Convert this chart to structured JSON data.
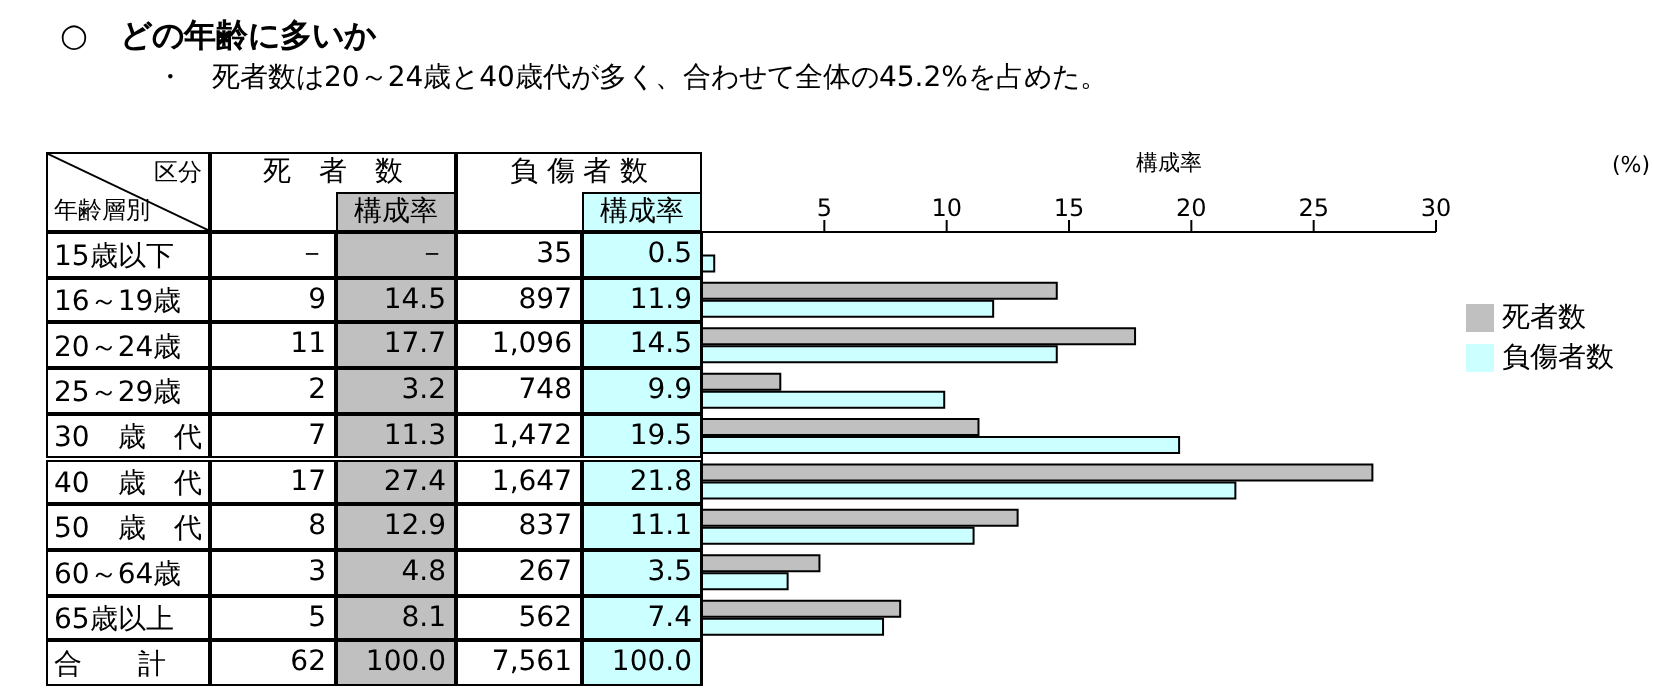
{
  "chart_data": {
    "type": "bar",
    "orientation": "horizontal",
    "title": "○　どの年齢に多いか",
    "subtitle": "・　死者数は20～24歳と40歳代が多く、合わせて全体の45.2%を占めた。",
    "xlabel": "構成率",
    "categories": [
      "15歳以下",
      "16～19歳",
      "20～24歳",
      "25～29歳",
      "30　歳　代",
      "40　歳　代",
      "50　歳　代",
      "60～64歳",
      "65歳以上",
      "合　　計"
    ],
    "series": [
      {
        "name": "死者数",
        "color": "#c0c0c0",
        "values": [
          null,
          14.5,
          17.7,
          3.2,
          11.3,
          27.4,
          12.9,
          4.8,
          8.1,
          null
        ],
        "value_labels": [
          "－",
          "14.5",
          "17.7",
          "3.2",
          "11.3",
          "27.4",
          "12.9",
          "4.8",
          "8.1",
          "100.0"
        ]
      },
      {
        "name": "負傷者数",
        "color": "#ccffff",
        "values": [
          0.5,
          11.9,
          14.5,
          9.9,
          19.5,
          21.8,
          11.1,
          3.5,
          7.4,
          null
        ],
        "value_labels": [
          "0.5",
          "11.9",
          "14.5",
          "9.9",
          "19.5",
          "21.8",
          "11.1",
          "3.5",
          "7.4",
          "100.0"
        ]
      }
    ],
    "x2lim": [
      0,
      30
    ],
    "x2ticks": [
      5,
      10,
      15,
      20,
      25,
      30
    ],
    "grid": false,
    "legend": "right",
    "annotations": [
      "(%)",
      "区分",
      "年齢層別",
      "死　者　数",
      "構成率",
      "負 傷 者 数",
      "構成率",
      "－",
      "35",
      "9",
      "897",
      "11",
      "1,096",
      "2",
      "748",
      "7",
      "1,472",
      "17",
      "1,647",
      "8",
      "837",
      "3",
      "267",
      "5",
      "562",
      "62",
      "7,561"
    ]
  }
}
